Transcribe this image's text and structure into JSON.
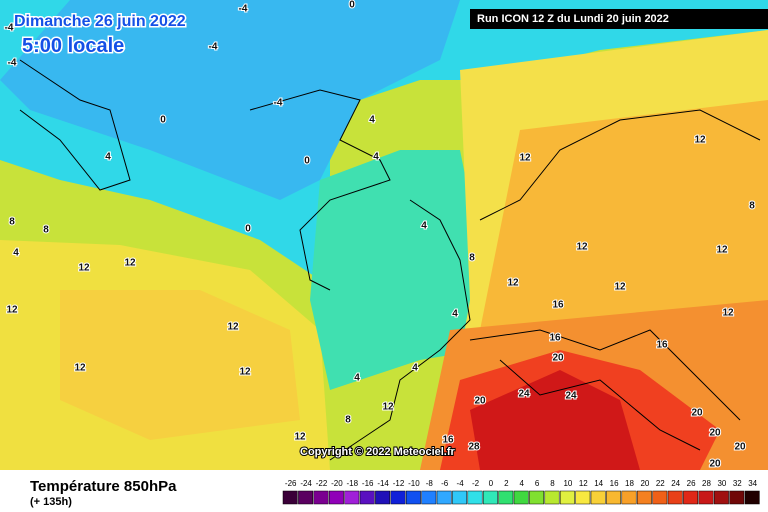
{
  "header": {
    "date": "Dimanche 26 juin 2022",
    "time": "5:00 locale",
    "run": "Run ICON 12 Z du Lundi 20 juin 2022"
  },
  "footer": {
    "title": "Température 850hPa",
    "lead": "(+ 135h)",
    "copyright": "Copyright © 2022 Meteociel.fr"
  },
  "contour_labels": [
    -4,
    0,
    -4,
    -4,
    -4,
    -4,
    0,
    4,
    4,
    4,
    0,
    0,
    12,
    12,
    8,
    8,
    8,
    4,
    4,
    8,
    12,
    12,
    12,
    12,
    12,
    12,
    16,
    4,
    12,
    12,
    12,
    16,
    16,
    20,
    12,
    12,
    4,
    4,
    24,
    24,
    20,
    20,
    12,
    16,
    28,
    20,
    20,
    12,
    8,
    20
  ],
  "scale": {
    "values": [
      -26,
      -24,
      -22,
      -20,
      -18,
      -16,
      -14,
      -12,
      -10,
      -8,
      -6,
      -4,
      -2,
      0,
      2,
      4,
      6,
      8,
      10,
      12,
      14,
      16,
      18,
      20,
      22,
      24,
      26,
      28,
      30,
      32,
      34
    ],
    "colors": [
      "#3a0038",
      "#5a0060",
      "#7a0090",
      "#9000b8",
      "#a020d8",
      "#5a10c0",
      "#2010b8",
      "#1020d8",
      "#1050f0",
      "#2080ff",
      "#30a8ff",
      "#30c8f8",
      "#30e0e8",
      "#30e8b8",
      "#30e070",
      "#40d840",
      "#80e030",
      "#b8e830",
      "#e0f040",
      "#f8e840",
      "#f8d038",
      "#f8b830",
      "#f8a028",
      "#f48020",
      "#f06018",
      "#e84018",
      "#e02818",
      "#c81818",
      "#a01010",
      "#700808",
      "#200000"
    ]
  }
}
